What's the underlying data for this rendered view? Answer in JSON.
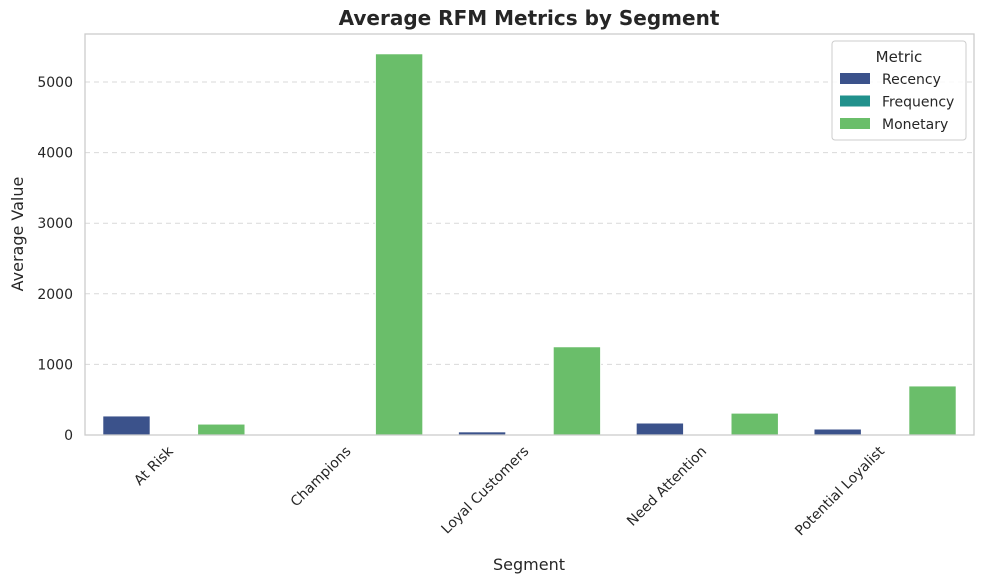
{
  "chart_data": {
    "type": "bar",
    "title": "Average RFM Metrics by Segment",
    "xlabel": "Segment",
    "ylabel": "Average Value",
    "categories": [
      "At Risk",
      "Champions",
      "Loyal Customers",
      "Need Attention",
      "Potential Loyalist"
    ],
    "series": [
      {
        "name": "Recency",
        "color": "#3b528b",
        "values": [
          270,
          12,
          45,
          170,
          85
        ]
      },
      {
        "name": "Frequency",
        "color": "#21918c",
        "values": [
          2,
          10,
          5,
          3,
          4
        ]
      },
      {
        "name": "Monetary",
        "color": "#6abe6a",
        "values": [
          155,
          5400,
          1250,
          310,
          695
        ]
      }
    ],
    "ylim": [
      0,
      5680
    ],
    "yticks": [
      0,
      1000,
      2000,
      3000,
      4000,
      5000
    ],
    "grid": "y-dashed",
    "legend": {
      "title": "Metric",
      "placement": "top-right"
    }
  }
}
